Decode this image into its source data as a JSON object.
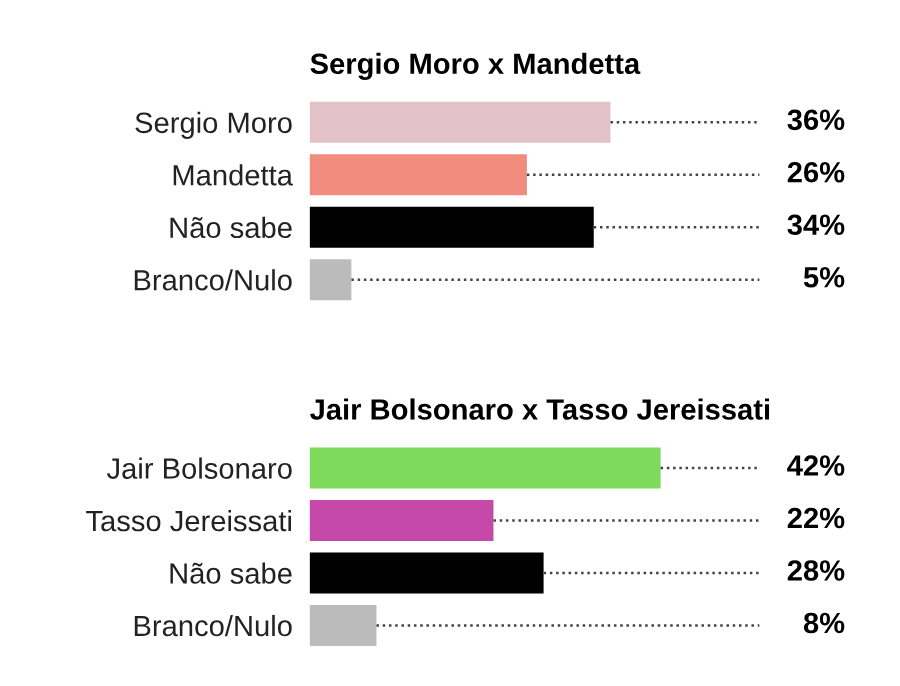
{
  "chart_data": [
    {
      "type": "bar",
      "orientation": "horizontal",
      "title": "Sergio Moro x Mandetta",
      "categories": [
        "Sergio Moro",
        "Mandetta",
        "Não sabe",
        "Branco/Nulo"
      ],
      "values": [
        36,
        26,
        34,
        5
      ],
      "colors": [
        "#e3c1c8",
        "#f08b7d",
        "#000000",
        "#bbbbbb"
      ],
      "value_labels": [
        "36%",
        "26%",
        "34%",
        "5%"
      ],
      "grid": false,
      "legend": false
    },
    {
      "type": "bar",
      "orientation": "horizontal",
      "title": "Jair Bolsonaro x Tasso Jereissati",
      "categories": [
        "Jair Bolsonaro",
        "Tasso Jereissati",
        "Não sabe",
        "Branco/Nulo"
      ],
      "values": [
        42,
        22,
        28,
        8
      ],
      "colors": [
        "#7fd95d",
        "#c449a8",
        "#000000",
        "#bbbbbb"
      ],
      "value_labels": [
        "42%",
        "22%",
        "28%",
        "8%"
      ],
      "grid": false,
      "legend": false
    }
  ]
}
